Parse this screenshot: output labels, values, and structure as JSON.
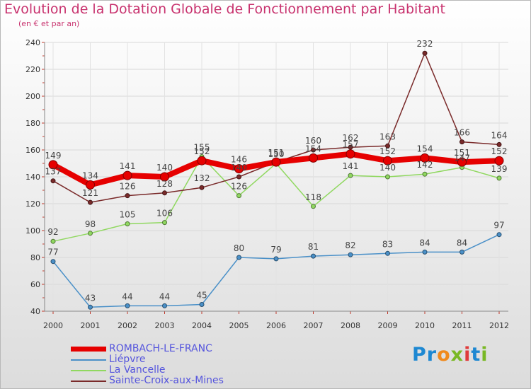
{
  "header": {
    "title": "Evolution de la Dotation Globale de Fonctionnement par Habitant",
    "subtitle": "(en € et par an)"
  },
  "logo": {
    "text": "Proxiti"
  },
  "chart_data": {
    "type": "line",
    "title": "Evolution de la Dotation Globale de Fonctionnement par Habitant",
    "subtitle": "(en € et par an)",
    "xlabel": "",
    "ylabel": "",
    "x": [
      "2000",
      "2001",
      "2002",
      "2003",
      "2004",
      "2005",
      "2006",
      "2007",
      "2008",
      "2009",
      "2010",
      "2011",
      "2012"
    ],
    "ylim": [
      40,
      240
    ],
    "yticks": [
      40,
      60,
      80,
      100,
      120,
      140,
      160,
      180,
      200,
      220,
      240
    ],
    "grid": true,
    "legend_position": "bottom-left",
    "series": [
      {
        "name": "ROMBACH-LE-FRANC",
        "color": "#e60000",
        "bold": true,
        "values": [
          149,
          134,
          141,
          140,
          152,
          146,
          151,
          154,
          157,
          152,
          154,
          151,
          152
        ]
      },
      {
        "name": "Liépvre",
        "color": "#4a90c8",
        "bold": false,
        "values": [
          77,
          43,
          44,
          44,
          45,
          80,
          79,
          81,
          82,
          83,
          84,
          84,
          97
        ]
      },
      {
        "name": "La Vancelle",
        "color": "#90d860",
        "bold": false,
        "values": [
          92,
          98,
          105,
          106,
          155,
          126,
          150,
          118,
          141,
          140,
          142,
          147,
          139
        ]
      },
      {
        "name": "Sainte-Croix-aux-Mines",
        "color": "#7a2a2a",
        "bold": false,
        "values": [
          137,
          121,
          126,
          128,
          132,
          140,
          151,
          160,
          162,
          163,
          232,
          166,
          164
        ]
      }
    ]
  }
}
